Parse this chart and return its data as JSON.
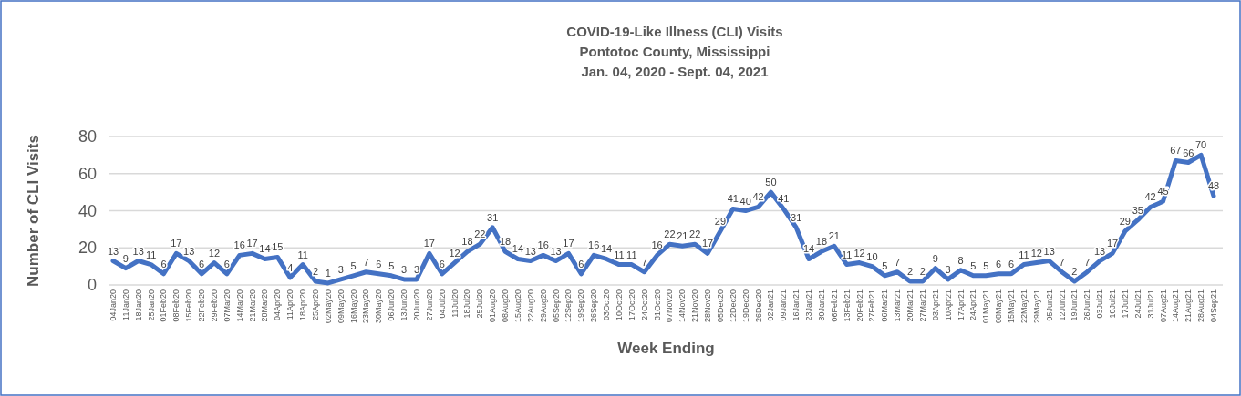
{
  "chart_data": {
    "type": "line",
    "title": "COVID-19-Like Illness (CLI) Visits\nPontotoc County, Mississippi\nJan. 04, 2020 - Sept. 04, 2021",
    "xlabel": "Week Ending",
    "ylabel": "Number of CLI Visits",
    "categories": [
      "04Jan20",
      "11Jan20",
      "18Jan20",
      "25Jan20",
      "01Feb20",
      "08Feb20",
      "15Feb20",
      "22Feb20",
      "29Feb20",
      "07Mar20",
      "14Mar20",
      "21Mar20",
      "28Mar20",
      "04Apr20",
      "11Apr20",
      "18Apr20",
      "25Apr20",
      "02May20",
      "09May20",
      "16May20",
      "23May20",
      "30May20",
      "06Jun20",
      "13Jun20",
      "20Jun20",
      "27Jun20",
      "04Jul20",
      "11Jul20",
      "18Jul20",
      "25Jul20",
      "01Aug20",
      "08Aug20",
      "15Aug20",
      "22Aug20",
      "29Aug20",
      "05Sep20",
      "12Sep20",
      "19Sep20",
      "26Sep20",
      "03Oct20",
      "10Oct20",
      "17Oct20",
      "24Oct20",
      "31Oct20",
      "07Nov20",
      "14Nov20",
      "21Nov20",
      "28Nov20",
      "05Dec20",
      "12Dec20",
      "19Dec20",
      "26Dec20",
      "02Jan21",
      "09Jan21",
      "16Jan21",
      "23Jan21",
      "30Jan21",
      "06Feb21",
      "13Feb21",
      "20Feb21",
      "27Feb21",
      "06Mar21",
      "13Mar21",
      "20Mar21",
      "27Mar21",
      "03Apr21",
      "10Apr21",
      "17Apr21",
      "24Apr21",
      "01May21",
      "08May21",
      "15May21",
      "22May21",
      "29May21",
      "05Jun21",
      "12Jun21",
      "19Jun21",
      "26Jun21",
      "03Jul21",
      "10Jul21",
      "17Jul21",
      "24Jul21",
      "31Jul21",
      "07Aug21",
      "14Aug21",
      "21Aug21",
      "28Aug21",
      "04Sep21"
    ],
    "series": [
      {
        "color": "#4472c4",
        "values": [
          13,
          9,
          13,
          11,
          6,
          17,
          13,
          6,
          12,
          6,
          16,
          17,
          14,
          15,
          4,
          11,
          2,
          1,
          3,
          5,
          7,
          6,
          5,
          3,
          3,
          17,
          6,
          12,
          18,
          22,
          31,
          18,
          14,
          13,
          16,
          13,
          17,
          6,
          16,
          14,
          11,
          11,
          7,
          16,
          22,
          21,
          22,
          17,
          29,
          41,
          40,
          42,
          50,
          41,
          31,
          14,
          18,
          21,
          11,
          12,
          10,
          5,
          7,
          2,
          2,
          9,
          3,
          8,
          5,
          5,
          6,
          6,
          11,
          12,
          13,
          7,
          2,
          7,
          13,
          17,
          29,
          35,
          42,
          45,
          67,
          66,
          70,
          48
        ]
      }
    ],
    "ylim": [
      0,
      80
    ],
    "yticks": [
      0,
      20,
      40,
      60,
      80
    ],
    "grid": "y",
    "legend": false,
    "marker": "none",
    "line_style": "solid",
    "data_labels": true
  }
}
